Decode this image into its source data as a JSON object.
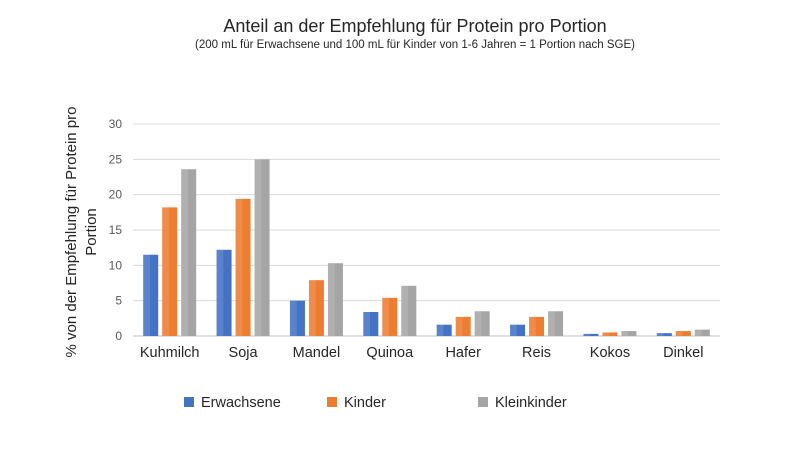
{
  "chart_data": {
    "type": "bar",
    "title": "Anteil an der Empfehlung für Protein pro Portion",
    "subtitle": "(200 mL für Erwachsene  und 100 mL für Kinder von 1-6 Jahren = 1 Portion nach SGE)",
    "xlabel": "",
    "ylabel_lines": [
      "% von der Empfehlung für Protein pro",
      "Portion"
    ],
    "ylim": [
      0,
      30
    ],
    "yticks": [
      0,
      5,
      10,
      15,
      20,
      25,
      30
    ],
    "grid": true,
    "legend_position": "bottom",
    "categories": [
      "Kuhmilch",
      "Soja",
      "Mandel",
      "Quinoa",
      "Hafer",
      "Reis",
      "Kokos",
      "Dinkel"
    ],
    "series": [
      {
        "name": "Erwachsene",
        "color": "#4472C4",
        "values": [
          11.5,
          12.2,
          5.0,
          3.4,
          1.6,
          1.6,
          0.3,
          0.4
        ]
      },
      {
        "name": "Kinder",
        "color": "#ED7D31",
        "values": [
          18.2,
          19.4,
          7.9,
          5.4,
          2.7,
          2.7,
          0.5,
          0.7
        ]
      },
      {
        "name": "Kleinkinder",
        "color": "#A5A5A5",
        "values": [
          23.6,
          25.0,
          10.3,
          7.1,
          3.5,
          3.5,
          0.7,
          0.9
        ]
      }
    ]
  }
}
